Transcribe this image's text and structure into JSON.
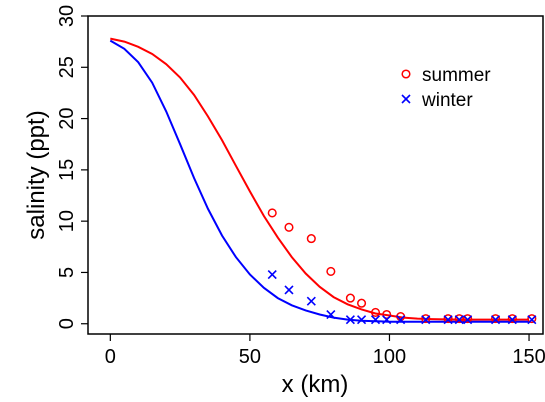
{
  "chart_data": {
    "type": "scatter",
    "xlabel": "x (km)",
    "ylabel": "salinity (ppt)",
    "xlim": [
      -8,
      155
    ],
    "ylim": [
      -1,
      30
    ],
    "xticks": [
      0,
      50,
      100,
      150
    ],
    "yticks": [
      0,
      5,
      10,
      15,
      20,
      25,
      30
    ],
    "grid": false,
    "legend_position": "top-right",
    "series": [
      {
        "name": "summer",
        "marker": "circle",
        "color": "#ff0000",
        "points": [
          {
            "x": 58,
            "y": 10.8
          },
          {
            "x": 64,
            "y": 9.4
          },
          {
            "x": 72,
            "y": 8.3
          },
          {
            "x": 79,
            "y": 5.1
          },
          {
            "x": 86,
            "y": 2.5
          },
          {
            "x": 90,
            "y": 2.0
          },
          {
            "x": 95,
            "y": 1.1
          },
          {
            "x": 99,
            "y": 0.9
          },
          {
            "x": 104,
            "y": 0.7
          },
          {
            "x": 113,
            "y": 0.5
          },
          {
            "x": 121,
            "y": 0.5
          },
          {
            "x": 125,
            "y": 0.5
          },
          {
            "x": 128,
            "y": 0.5
          },
          {
            "x": 138,
            "y": 0.5
          },
          {
            "x": 144,
            "y": 0.5
          },
          {
            "x": 151,
            "y": 0.5
          }
        ],
        "curve": {
          "x": [
            0,
            5,
            10,
            15,
            20,
            25,
            30,
            35,
            40,
            45,
            50,
            55,
            60,
            65,
            70,
            75,
            80,
            85,
            90,
            95,
            100,
            105,
            110,
            115,
            120,
            125,
            130,
            135,
            140,
            145,
            150
          ],
          "y": [
            27.8,
            27.5,
            27.0,
            26.3,
            25.3,
            24.0,
            22.3,
            20.2,
            17.9,
            15.4,
            12.9,
            10.5,
            8.4,
            6.5,
            4.9,
            3.6,
            2.6,
            1.9,
            1.4,
            1.0,
            0.8,
            0.6,
            0.5,
            0.45,
            0.42,
            0.4,
            0.4,
            0.4,
            0.4,
            0.4,
            0.4
          ]
        }
      },
      {
        "name": "winter",
        "marker": "x",
        "color": "#0000ff",
        "points": [
          {
            "x": 58,
            "y": 4.8
          },
          {
            "x": 64,
            "y": 3.3
          },
          {
            "x": 72,
            "y": 2.2
          },
          {
            "x": 79,
            "y": 0.9
          },
          {
            "x": 86,
            "y": 0.4
          },
          {
            "x": 90,
            "y": 0.4
          },
          {
            "x": 95,
            "y": 0.4
          },
          {
            "x": 99,
            "y": 0.4
          },
          {
            "x": 104,
            "y": 0.4
          },
          {
            "x": 113,
            "y": 0.4
          },
          {
            "x": 121,
            "y": 0.4
          },
          {
            "x": 125,
            "y": 0.4
          },
          {
            "x": 128,
            "y": 0.4
          },
          {
            "x": 138,
            "y": 0.4
          },
          {
            "x": 144,
            "y": 0.4
          },
          {
            "x": 151,
            "y": 0.4
          }
        ],
        "curve": {
          "x": [
            0,
            5,
            10,
            15,
            20,
            25,
            30,
            35,
            40,
            45,
            50,
            55,
            60,
            65,
            70,
            75,
            80,
            85,
            90,
            95,
            100,
            105,
            110,
            115,
            120,
            125,
            130,
            135,
            140,
            145,
            150
          ],
          "y": [
            27.6,
            26.8,
            25.5,
            23.5,
            20.7,
            17.5,
            14.2,
            11.2,
            8.6,
            6.5,
            4.8,
            3.5,
            2.5,
            1.8,
            1.3,
            0.9,
            0.6,
            0.4,
            0.3,
            0.25,
            0.2,
            0.2,
            0.2,
            0.2,
            0.2,
            0.2,
            0.2,
            0.2,
            0.2,
            0.2,
            0.2
          ]
        }
      }
    ]
  }
}
